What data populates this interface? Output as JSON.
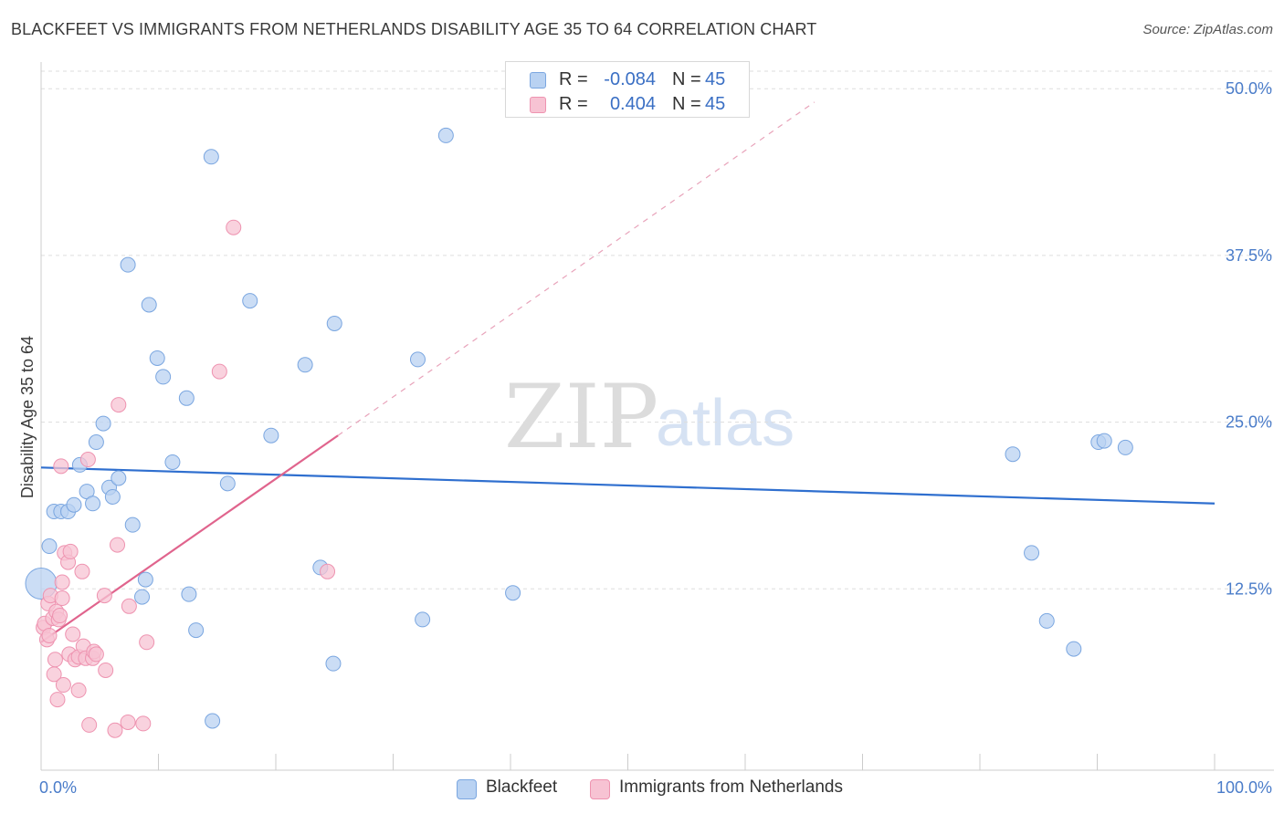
{
  "title": "BLACKFEET VS IMMIGRANTS FROM NETHERLANDS DISABILITY AGE 35 TO 64 CORRELATION CHART",
  "source": "Source: ZipAtlas.com",
  "watermark": {
    "zip": "ZIP",
    "atlas": "atlas"
  },
  "legend": {
    "rows": [
      {
        "r_label": "R =",
        "r_value": "-0.084",
        "n_label": "N =",
        "n_value": "45"
      },
      {
        "r_label": "R =",
        "r_value": "0.404",
        "n_label": "N =",
        "n_value": "45"
      }
    ]
  },
  "colors": {
    "blue_fill": "#b9d2f2",
    "blue_stroke": "#7aa6e0",
    "blue_line": "#2f6fcf",
    "pink_fill": "#f7c3d3",
    "pink_stroke": "#ee93b0",
    "pink_line": "#e0648d",
    "tick_text": "#4a7cc9",
    "grid": "#dddddd"
  },
  "chart_data": {
    "type": "scatter",
    "title": "BLACKFEET VS IMMIGRANTS FROM NETHERLANDS DISABILITY AGE 35 TO 64 CORRELATION CHART",
    "xlabel": "",
    "ylabel": "Disability Age 35 to 64",
    "xlim": [
      0,
      100
    ],
    "ylim": [
      0,
      52
    ],
    "x_tick_labels": [
      "0.0%",
      "100.0%"
    ],
    "y_ticks": [
      12.5,
      25.0,
      37.5,
      50.0
    ],
    "y_tick_labels": [
      "12.5%",
      "25.0%",
      "37.5%",
      "50.0%"
    ],
    "legend_location": "bottom-center",
    "series": [
      {
        "name": "Blackfeet",
        "r": -0.084,
        "n": 45,
        "points": [
          [
            0.0,
            12.9
          ],
          [
            0.7,
            15.7
          ],
          [
            1.1,
            18.3
          ],
          [
            1.7,
            18.3
          ],
          [
            2.3,
            18.3
          ],
          [
            2.8,
            18.8
          ],
          [
            3.3,
            21.8
          ],
          [
            3.9,
            19.8
          ],
          [
            4.4,
            18.9
          ],
          [
            4.7,
            23.5
          ],
          [
            5.3,
            24.9
          ],
          [
            5.8,
            20.1
          ],
          [
            6.1,
            19.4
          ],
          [
            6.6,
            20.8
          ],
          [
            7.4,
            36.8
          ],
          [
            7.8,
            17.3
          ],
          [
            8.6,
            11.9
          ],
          [
            8.9,
            13.2
          ],
          [
            9.2,
            33.8
          ],
          [
            9.9,
            29.8
          ],
          [
            10.4,
            28.4
          ],
          [
            11.2,
            22.0
          ],
          [
            12.4,
            26.8
          ],
          [
            12.6,
            12.1
          ],
          [
            13.2,
            9.4
          ],
          [
            14.5,
            44.9
          ],
          [
            14.6,
            2.6
          ],
          [
            15.9,
            20.4
          ],
          [
            17.8,
            34.1
          ],
          [
            19.6,
            24.0
          ],
          [
            22.5,
            29.3
          ],
          [
            23.8,
            14.1
          ],
          [
            24.9,
            6.9
          ],
          [
            25.0,
            32.4
          ],
          [
            32.1,
            29.7
          ],
          [
            32.5,
            10.2
          ],
          [
            34.5,
            46.5
          ],
          [
            40.2,
            12.2
          ],
          [
            82.8,
            22.6
          ],
          [
            84.4,
            15.2
          ],
          [
            85.7,
            10.1
          ],
          [
            88.0,
            8.0
          ],
          [
            90.1,
            23.5
          ],
          [
            90.6,
            23.6
          ],
          [
            92.4,
            23.1
          ]
        ],
        "trend": {
          "x": [
            0,
            100
          ],
          "y": [
            21.6,
            18.9
          ],
          "style": "solid"
        }
      },
      {
        "name": "Immigrants from Netherlands",
        "r": 0.404,
        "n": 45,
        "points": [
          [
            0.2,
            9.6
          ],
          [
            0.3,
            9.9
          ],
          [
            0.5,
            8.7
          ],
          [
            0.6,
            11.4
          ],
          [
            0.7,
            9.0
          ],
          [
            0.8,
            12.0
          ],
          [
            1.0,
            10.3
          ],
          [
            1.1,
            6.1
          ],
          [
            1.2,
            7.2
          ],
          [
            1.3,
            10.8
          ],
          [
            1.4,
            4.2
          ],
          [
            1.5,
            10.2
          ],
          [
            1.6,
            10.5
          ],
          [
            1.7,
            21.7
          ],
          [
            1.8,
            11.8
          ],
          [
            1.8,
            13.0
          ],
          [
            1.9,
            5.3
          ],
          [
            2.0,
            15.2
          ],
          [
            2.3,
            14.5
          ],
          [
            2.4,
            7.6
          ],
          [
            2.5,
            15.3
          ],
          [
            2.7,
            9.1
          ],
          [
            2.9,
            7.2
          ],
          [
            3.2,
            7.4
          ],
          [
            3.2,
            4.9
          ],
          [
            3.5,
            13.8
          ],
          [
            3.6,
            8.2
          ],
          [
            3.8,
            7.3
          ],
          [
            4.0,
            22.2
          ],
          [
            4.1,
            2.3
          ],
          [
            4.4,
            7.3
          ],
          [
            4.5,
            7.8
          ],
          [
            4.7,
            7.6
          ],
          [
            5.4,
            12.0
          ],
          [
            5.5,
            6.4
          ],
          [
            6.3,
            1.9
          ],
          [
            6.5,
            15.8
          ],
          [
            6.6,
            26.3
          ],
          [
            7.4,
            2.5
          ],
          [
            7.5,
            11.2
          ],
          [
            8.7,
            2.4
          ],
          [
            9.0,
            8.5
          ],
          [
            16.4,
            39.6
          ],
          [
            15.2,
            28.8
          ],
          [
            24.4,
            13.8
          ]
        ],
        "trend": {
          "x": [
            0,
            25.3
          ],
          "y": [
            8.5,
            24.0
          ],
          "extension": {
            "x": [
              25.3,
              65.9
            ],
            "y": [
              24.0,
              49.0
            ]
          }
        }
      }
    ]
  }
}
